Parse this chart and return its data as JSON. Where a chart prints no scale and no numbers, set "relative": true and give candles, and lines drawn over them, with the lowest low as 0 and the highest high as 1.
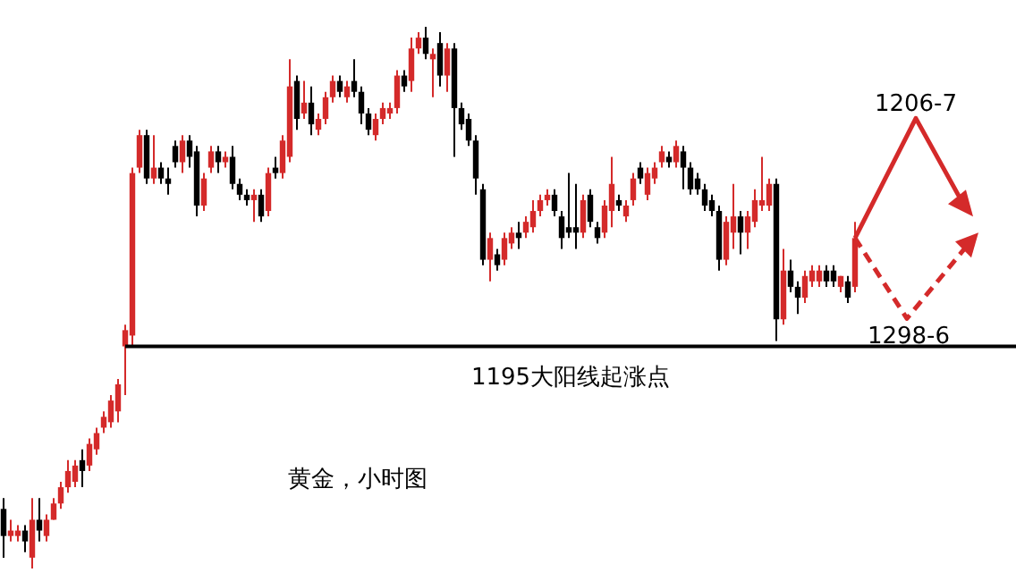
{
  "chart_data": {
    "type": "candlestick",
    "relative": true,
    "categories": [
      null,
      null,
      null,
      null,
      null,
      null,
      null,
      null,
      null,
      null,
      null,
      null,
      null,
      null,
      null,
      null,
      null,
      null,
      null,
      null,
      null,
      null,
      null,
      null,
      null,
      null,
      null,
      null,
      null,
      null,
      null,
      null,
      null,
      null,
      null,
      null,
      null,
      null,
      null,
      null,
      null,
      null,
      null,
      null,
      null,
      null,
      null,
      null,
      null,
      null,
      null,
      null,
      null,
      null,
      null,
      null,
      null,
      null,
      null,
      null,
      null,
      null,
      null,
      null,
      null,
      null,
      null,
      null,
      null,
      null,
      null,
      null,
      null,
      null,
      null,
      null,
      null,
      null,
      null,
      null,
      null,
      null,
      null,
      null,
      null,
      null,
      null,
      null,
      null,
      null,
      null,
      null,
      null,
      null,
      null,
      null,
      null,
      null,
      null,
      null,
      null,
      null,
      null,
      null,
      null,
      null,
      null,
      null,
      null,
      null,
      null,
      null,
      null,
      null,
      null,
      null,
      null,
      null,
      null,
      null
    ],
    "ohlc": [
      [
        0.11,
        0.13,
        0.02,
        0.06
      ],
      [
        0.06,
        0.09,
        0.05,
        0.07
      ],
      [
        0.06,
        0.08,
        0.05,
        0.07
      ],
      [
        0.07,
        0.08,
        0.03,
        0.05
      ],
      [
        0.02,
        0.13,
        0,
        0.09
      ],
      [
        0.09,
        0.13,
        0.05,
        0.07
      ],
      [
        0.06,
        0.1,
        0.05,
        0.09
      ],
      [
        0.09,
        0.13,
        0.09,
        0.12
      ],
      [
        0.12,
        0.16,
        0.11,
        0.15
      ],
      [
        0.15,
        0.2,
        0.14,
        0.18
      ],
      [
        0.16,
        0.2,
        0.15,
        0.19
      ],
      [
        0.2,
        0.22,
        0.15,
        0.18
      ],
      [
        0.19,
        0.24,
        0.18,
        0.23
      ],
      [
        0.22,
        0.26,
        0.21,
        0.25
      ],
      [
        0.26,
        0.29,
        0.25,
        0.28
      ],
      [
        0.27,
        0.32,
        0.26,
        0.31
      ],
      [
        0.29,
        0.35,
        0.27,
        0.34
      ],
      [
        0.41,
        0.45,
        0.32,
        0.44
      ],
      [
        0.43,
        0.74,
        0.41,
        0.73
      ],
      [
        0.74,
        0.81,
        0.73,
        0.8
      ],
      [
        0.8,
        0.81,
        0.71,
        0.72
      ],
      [
        0.72,
        0.8,
        0.71,
        0.74
      ],
      [
        0.74,
        0.75,
        0.71,
        0.72
      ],
      [
        0.72,
        0.74,
        0.69,
        0.71
      ],
      [
        0.78,
        0.79,
        0.74,
        0.75
      ],
      [
        0.75,
        0.8,
        0.73,
        0.79
      ],
      [
        0.79,
        0.8,
        0.74,
        0.76
      ],
      [
        0.77,
        0.78,
        0.65,
        0.67
      ],
      [
        0.67,
        0.73,
        0.66,
        0.72
      ],
      [
        0.74,
        0.78,
        0.73,
        0.77
      ],
      [
        0.77,
        0.78,
        0.73,
        0.75
      ],
      [
        0.75,
        0.77,
        0.74,
        0.76
      ],
      [
        0.76,
        0.78,
        0.7,
        0.71
      ],
      [
        0.71,
        0.72,
        0.68,
        0.69
      ],
      [
        0.69,
        0.7,
        0.67,
        0.68
      ],
      [
        0.68,
        0.7,
        0.64,
        0.69
      ],
      [
        0.69,
        0.7,
        0.64,
        0.65
      ],
      [
        0.66,
        0.74,
        0.65,
        0.73
      ],
      [
        0.74,
        0.76,
        0.72,
        0.73
      ],
      [
        0.73,
        0.8,
        0.72,
        0.79
      ],
      [
        0.76,
        0.94,
        0.75,
        0.89
      ],
      [
        0.9,
        0.91,
        0.81,
        0.83
      ],
      [
        0.84,
        0.9,
        0.83,
        0.86
      ],
      [
        0.86,
        0.89,
        0.8,
        0.82
      ],
      [
        0.81,
        0.84,
        0.8,
        0.83
      ],
      [
        0.83,
        0.88,
        0.82,
        0.87
      ],
      [
        0.87,
        0.91,
        0.86,
        0.9
      ],
      [
        0.9,
        0.91,
        0.87,
        0.88
      ],
      [
        0.87,
        0.9,
        0.86,
        0.89
      ],
      [
        0.9,
        0.94,
        0.87,
        0.88
      ],
      [
        0.88,
        0.89,
        0.82,
        0.84
      ],
      [
        0.84,
        0.85,
        0.8,
        0.81
      ],
      [
        0.8,
        0.84,
        0.79,
        0.83
      ],
      [
        0.83,
        0.86,
        0.82,
        0.85
      ],
      [
        0.84,
        0.86,
        0.83,
        0.85
      ],
      [
        0.85,
        0.92,
        0.84,
        0.91
      ],
      [
        0.91,
        0.92,
        0.88,
        0.89
      ],
      [
        0.9,
        0.98,
        0.88,
        0.96
      ],
      [
        0.96,
        0.99,
        0.95,
        0.98
      ],
      [
        0.98,
        1,
        0.94,
        0.95
      ],
      [
        0.94,
        0.96,
        0.87,
        0.95
      ],
      [
        0.97,
        0.99,
        0.89,
        0.91
      ],
      [
        0.91,
        0.97,
        0.88,
        0.96
      ],
      [
        0.96,
        0.97,
        0.76,
        0.85
      ],
      [
        0.85,
        0.86,
        0.81,
        0.82
      ],
      [
        0.83,
        0.84,
        0.78,
        0.79
      ],
      [
        0.79,
        0.8,
        0.69,
        0.72
      ],
      [
        0.7,
        0.71,
        0.56,
        0.57
      ],
      [
        0.57,
        0.62,
        0.53,
        0.61
      ],
      [
        0.58,
        0.59,
        0.55,
        0.56
      ],
      [
        0.57,
        0.62,
        0.56,
        0.61
      ],
      [
        0.6,
        0.63,
        0.59,
        0.62
      ],
      [
        0.62,
        0.64,
        0.59,
        0.61
      ],
      [
        0.62,
        0.65,
        0.61,
        0.64
      ],
      [
        0.63,
        0.68,
        0.62,
        0.66
      ],
      [
        0.66,
        0.69,
        0.65,
        0.68
      ],
      [
        0.68,
        0.7,
        0.67,
        0.69
      ],
      [
        0.69,
        0.7,
        0.65,
        0.66
      ],
      [
        0.65,
        0.66,
        0.59,
        0.61
      ],
      [
        0.63,
        0.73,
        0.61,
        0.62
      ],
      [
        0.63,
        0.71,
        0.59,
        0.62
      ],
      [
        0.62,
        0.69,
        0.61,
        0.68
      ],
      [
        0.69,
        0.7,
        0.63,
        0.64
      ],
      [
        0.63,
        0.64,
        0.6,
        0.61
      ],
      [
        0.62,
        0.68,
        0.61,
        0.67
      ],
      [
        0.66,
        0.76,
        0.63,
        0.71
      ],
      [
        0.68,
        0.69,
        0.66,
        0.67
      ],
      [
        0.65,
        0.68,
        0.64,
        0.67
      ],
      [
        0.68,
        0.73,
        0.67,
        0.72
      ],
      [
        0.74,
        0.75,
        0.71,
        0.72
      ],
      [
        0.69,
        0.74,
        0.68,
        0.73
      ],
      [
        0.72,
        0.75,
        0.71,
        0.74
      ],
      [
        0.75,
        0.78,
        0.74,
        0.77
      ],
      [
        0.76,
        0.77,
        0.74,
        0.75
      ],
      [
        0.75,
        0.79,
        0.74,
        0.78
      ],
      [
        0.77,
        0.78,
        0.7,
        0.74
      ],
      [
        0.74,
        0.75,
        0.69,
        0.7
      ],
      [
        0.72,
        0.73,
        0.69,
        0.7
      ],
      [
        0.7,
        0.71,
        0.66,
        0.67
      ],
      [
        0.68,
        0.69,
        0.65,
        0.66
      ],
      [
        0.66,
        0.67,
        0.55,
        0.57
      ],
      [
        0.57,
        0.65,
        0.56,
        0.64
      ],
      [
        0.62,
        0.71,
        0.59,
        0.65
      ],
      [
        0.65,
        0.66,
        0.58,
        0.62
      ],
      [
        0.62,
        0.66,
        0.59,
        0.65
      ],
      [
        0.64,
        0.7,
        0.63,
        0.68
      ],
      [
        0.67,
        0.76,
        0.66,
        0.68
      ],
      [
        0.67,
        0.72,
        0.66,
        0.71
      ],
      [
        0.71,
        0.72,
        0.42,
        0.46
      ],
      [
        0.46,
        0.59,
        0.45,
        0.55
      ],
      [
        0.55,
        0.57,
        0.51,
        0.52
      ],
      [
        0.52,
        0.53,
        0.47,
        0.5
      ],
      [
        0.5,
        0.55,
        0.49,
        0.54
      ],
      [
        0.53,
        0.56,
        0.52,
        0.55
      ],
      [
        0.53,
        0.56,
        0.52,
        0.55
      ],
      [
        0.55,
        0.56,
        0.52,
        0.53
      ],
      [
        0.55,
        0.56,
        0.52,
        0.53
      ],
      [
        0.52,
        0.54,
        0.51,
        0.54
      ],
      [
        0.53,
        0.54,
        0.49,
        0.5
      ],
      [
        0.52,
        0.64,
        0.51,
        0.61
      ]
    ],
    "colors": [
      "#000000",
      "#d42a2a",
      "#d42a2a",
      "#000000",
      "#d42a2a",
      "#000000",
      "#d42a2a",
      "#d42a2a",
      "#d42a2a",
      "#d42a2a",
      "#d42a2a",
      "#000000",
      "#d42a2a",
      "#d42a2a",
      "#d42a2a",
      "#d42a2a",
      "#d42a2a",
      "#d42a2a",
      "#d42a2a",
      "#d42a2a",
      "#000000",
      "#d42a2a",
      "#000000",
      "#000000",
      "#000000",
      "#d42a2a",
      "#000000",
      "#000000",
      "#d42a2a",
      "#d42a2a",
      "#000000",
      "#d42a2a",
      "#000000",
      "#000000",
      "#000000",
      "#d42a2a",
      "#000000",
      "#d42a2a",
      "#000000",
      "#d42a2a",
      "#d42a2a",
      "#000000",
      "#d42a2a",
      "#000000",
      "#d42a2a",
      "#d42a2a",
      "#d42a2a",
      "#000000",
      "#d42a2a",
      "#000000",
      "#000000",
      "#000000",
      "#d42a2a",
      "#d42a2a",
      "#d42a2a",
      "#d42a2a",
      "#000000",
      "#d42a2a",
      "#d42a2a",
      "#000000",
      "#d42a2a",
      "#000000",
      "#d42a2a",
      "#000000",
      "#000000",
      "#000000",
      "#000000",
      "#000000",
      "#d42a2a",
      "#000000",
      "#d42a2a",
      "#d42a2a",
      "#000000",
      "#d42a2a",
      "#d42a2a",
      "#d42a2a",
      "#d42a2a",
      "#000000",
      "#000000",
      "#000000",
      "#000000",
      "#d42a2a",
      "#000000",
      "#000000",
      "#d42a2a",
      "#d42a2a",
      "#000000",
      "#d42a2a",
      "#d42a2a",
      "#000000",
      "#d42a2a",
      "#d42a2a",
      "#d42a2a",
      "#000000",
      "#d42a2a",
      "#000000",
      "#000000",
      "#000000",
      "#000000",
      "#000000",
      "#000000",
      "#d42a2a",
      "#d42a2a",
      "#000000",
      "#d42a2a",
      "#d42a2a",
      "#d42a2a",
      "#d42a2a",
      "#000000",
      "#d42a2a",
      "#000000",
      "#000000",
      "#d42a2a",
      "#d42a2a",
      "#d42a2a",
      "#000000",
      "#000000",
      "#d42a2a",
      "#000000",
      "#d42a2a"
    ],
    "ref_lines": [
      {
        "axis": "y",
        "value": 0.41,
        "label": "1195大阳线起涨点",
        "color": "#000000"
      }
    ],
    "annotations": [
      "1206-7",
      "1298-6",
      "黄金，小时图"
    ]
  }
}
